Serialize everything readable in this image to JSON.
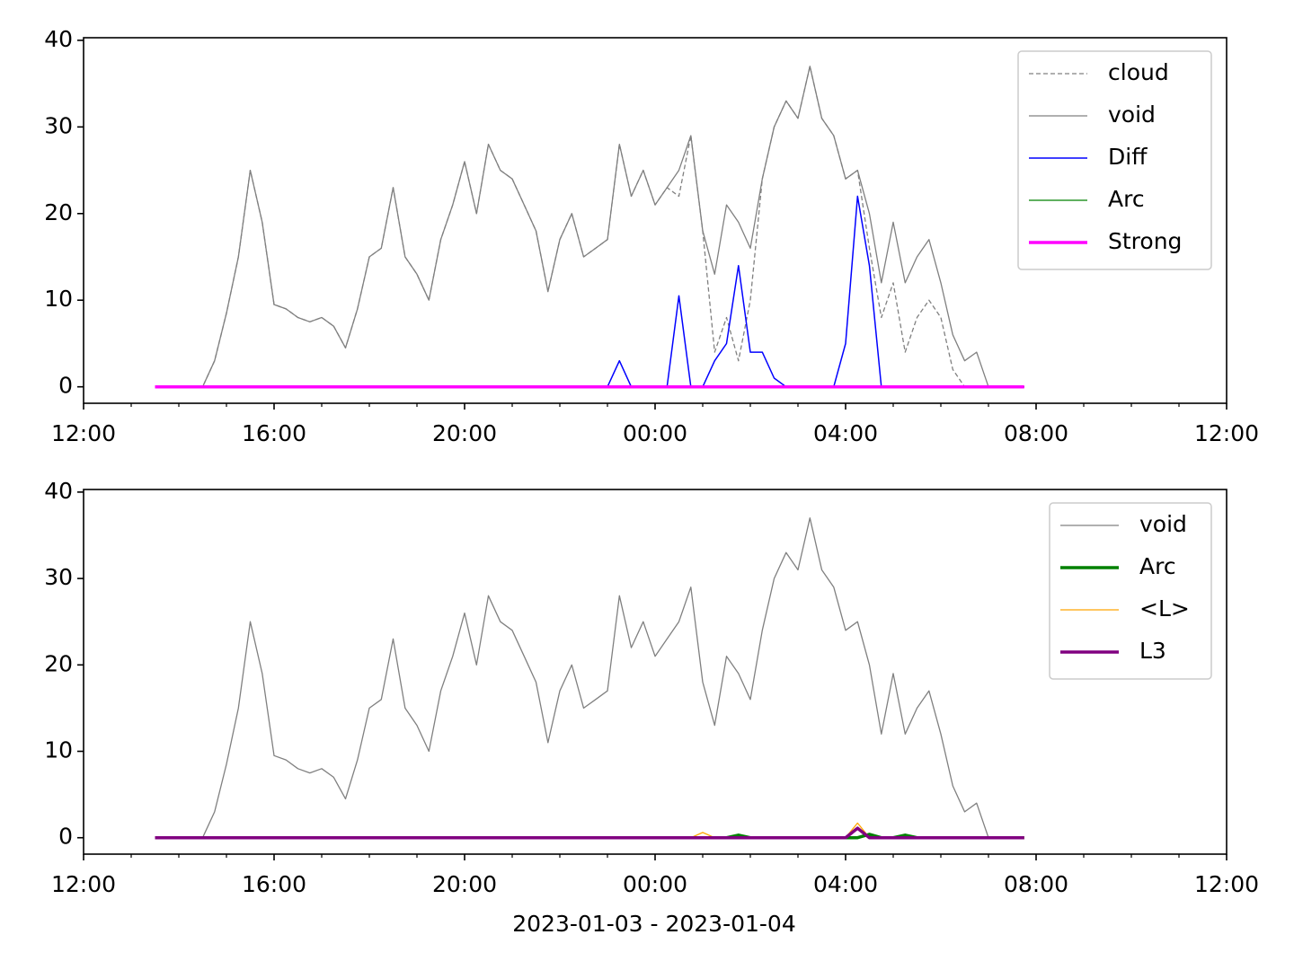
{
  "chart_data": [
    {
      "type": "line",
      "x": [
        13.5,
        13.75,
        14,
        14.25,
        14.5,
        14.75,
        15,
        15.25,
        15.5,
        15.75,
        16,
        16.25,
        16.5,
        16.75,
        17,
        17.25,
        17.5,
        17.75,
        18,
        18.25,
        18.5,
        18.75,
        19,
        19.25,
        19.5,
        19.75,
        20,
        20.25,
        20.5,
        20.75,
        21,
        21.25,
        21.5,
        21.75,
        22,
        22.25,
        22.5,
        22.75,
        23,
        23.25,
        23.5,
        23.75,
        24,
        24.25,
        24.5,
        24.75,
        25,
        25.25,
        25.5,
        25.75,
        26,
        26.25,
        26.5,
        26.75,
        27,
        27.25,
        27.5,
        27.75,
        28,
        28.25,
        28.5,
        28.75,
        29,
        29.25,
        29.5,
        29.75,
        30,
        30.25,
        30.5,
        30.75,
        31,
        31.25,
        31.5,
        31.75
      ],
      "xlim": [
        12,
        36
      ],
      "xticks": [
        {
          "value": 12,
          "label": "12:00"
        },
        {
          "value": 16,
          "label": "16:00"
        },
        {
          "value": 20,
          "label": "20:00"
        },
        {
          "value": 24,
          "label": "00:00"
        },
        {
          "value": 28,
          "label": "04:00"
        },
        {
          "value": 32,
          "label": "08:00"
        },
        {
          "value": 36,
          "label": "12:00"
        }
      ],
      "ylim": [
        -1.9,
        40.3
      ],
      "yticks": [
        0,
        10,
        20,
        30,
        40
      ],
      "legend": "upper right",
      "series": [
        {
          "name": "cloud",
          "color": "#808080",
          "dash": true,
          "width": 1.3,
          "values": [
            0,
            0,
            0,
            0,
            0,
            3,
            8.5,
            15,
            25,
            19,
            9.5,
            9,
            8,
            7.5,
            8,
            7,
            4.5,
            9,
            15,
            16,
            23,
            15,
            13,
            10,
            17,
            21,
            26,
            20,
            28,
            25,
            24,
            21,
            18,
            11,
            17,
            20,
            15,
            16,
            17,
            28,
            22,
            25,
            21,
            23,
            22,
            29,
            18,
            4,
            8,
            3,
            10,
            24,
            30,
            33,
            31,
            37,
            31,
            29,
            24,
            25,
            16,
            8,
            12,
            4,
            8,
            10,
            8,
            2,
            0,
            0,
            0,
            0,
            0,
            0
          ]
        },
        {
          "name": "void",
          "color": "#808080",
          "width": 1.3,
          "values": [
            0,
            0,
            0,
            0,
            0,
            3,
            8.5,
            15,
            25,
            19,
            9.5,
            9,
            8,
            7.5,
            8,
            7,
            4.5,
            9,
            15,
            16,
            23,
            15,
            13,
            10,
            17,
            21,
            26,
            20,
            28,
            25,
            24,
            21,
            18,
            11,
            17,
            20,
            15,
            16,
            17,
            28,
            22,
            25,
            21,
            23,
            25,
            29,
            18,
            13,
            21,
            19,
            16,
            24,
            30,
            33,
            31,
            37,
            31,
            29,
            24,
            25,
            20,
            12,
            19,
            12,
            15,
            17,
            12,
            6,
            3,
            4,
            0,
            0,
            0,
            0
          ]
        },
        {
          "name": "Diff",
          "color": "#0000ff",
          "width": 1.5,
          "values": [
            0,
            0,
            0,
            0,
            0,
            0,
            0,
            0,
            0,
            0,
            0,
            0,
            0,
            0,
            0,
            0,
            0,
            0,
            0,
            0,
            0,
            0,
            0,
            0,
            0,
            0,
            0,
            0,
            0,
            0,
            0,
            0,
            0,
            0,
            0,
            0,
            0,
            0,
            0,
            3,
            0,
            0,
            0,
            0,
            10.5,
            0,
            0,
            3,
            5,
            14,
            4,
            4,
            1,
            0,
            0,
            0,
            0,
            0,
            5,
            22,
            14,
            0,
            0,
            0,
            0,
            0,
            0,
            0,
            0,
            0,
            0,
            0,
            0,
            0
          ]
        },
        {
          "name": "Arc",
          "color": "#008000",
          "width": 1.3,
          "values": [
            0,
            0,
            0,
            0,
            0,
            0,
            0,
            0,
            0,
            0,
            0,
            0,
            0,
            0,
            0,
            0,
            0,
            0,
            0,
            0,
            0,
            0,
            0,
            0,
            0,
            0,
            0,
            0,
            0,
            0,
            0,
            0,
            0,
            0,
            0,
            0,
            0,
            0,
            0,
            0,
            0,
            0,
            0,
            0,
            0,
            0,
            0,
            0,
            0,
            0,
            0,
            0,
            0,
            0,
            0,
            0,
            0,
            0,
            0,
            0,
            0,
            0,
            0,
            0,
            0,
            0,
            0,
            0,
            0,
            0,
            0,
            0,
            0,
            0
          ]
        },
        {
          "name": "Strong",
          "color": "#ff00ff",
          "width": 3.5,
          "values": [
            0,
            0,
            0,
            0,
            0,
            0,
            0,
            0,
            0,
            0,
            0,
            0,
            0,
            0,
            0,
            0,
            0,
            0,
            0,
            0,
            0,
            0,
            0,
            0,
            0,
            0,
            0,
            0,
            0,
            0,
            0,
            0,
            0,
            0,
            0,
            0,
            0,
            0,
            0,
            0,
            0,
            0,
            0,
            0,
            0,
            0,
            0,
            0,
            0,
            0,
            0,
            0,
            0,
            0,
            0,
            0,
            0,
            0,
            0,
            0,
            0,
            0,
            0,
            0,
            0,
            0,
            0,
            0,
            0,
            0,
            0,
            0,
            0,
            0
          ]
        }
      ]
    },
    {
      "type": "line",
      "x": [
        13.5,
        13.75,
        14,
        14.25,
        14.5,
        14.75,
        15,
        15.25,
        15.5,
        15.75,
        16,
        16.25,
        16.5,
        16.75,
        17,
        17.25,
        17.5,
        17.75,
        18,
        18.25,
        18.5,
        18.75,
        19,
        19.25,
        19.5,
        19.75,
        20,
        20.25,
        20.5,
        20.75,
        21,
        21.25,
        21.5,
        21.75,
        22,
        22.25,
        22.5,
        22.75,
        23,
        23.25,
        23.5,
        23.75,
        24,
        24.25,
        24.5,
        24.75,
        25,
        25.25,
        25.5,
        25.75,
        26,
        26.25,
        26.5,
        26.75,
        27,
        27.25,
        27.5,
        27.75,
        28,
        28.25,
        28.5,
        28.75,
        29,
        29.25,
        29.5,
        29.75,
        30,
        30.25,
        30.5,
        30.75,
        31,
        31.25,
        31.5,
        31.75
      ],
      "xlim": [
        12,
        36
      ],
      "xticks": [
        {
          "value": 12,
          "label": "12:00"
        },
        {
          "value": 16,
          "label": "16:00"
        },
        {
          "value": 20,
          "label": "20:00"
        },
        {
          "value": 24,
          "label": "00:00"
        },
        {
          "value": 28,
          "label": "04:00"
        },
        {
          "value": 32,
          "label": "08:00"
        },
        {
          "value": 36,
          "label": "12:00"
        }
      ],
      "ylim": [
        -1.9,
        40.3
      ],
      "yticks": [
        0,
        10,
        20,
        30,
        40
      ],
      "xlabel": "2023-01-03 - 2023-01-04",
      "legend": "upper right",
      "series": [
        {
          "name": "void",
          "color": "#808080",
          "width": 1.3,
          "values": [
            0,
            0,
            0,
            0,
            0,
            3,
            8.5,
            15,
            25,
            19,
            9.5,
            9,
            8,
            7.5,
            8,
            7,
            4.5,
            9,
            15,
            16,
            23,
            15,
            13,
            10,
            17,
            21,
            26,
            20,
            28,
            25,
            24,
            21,
            18,
            11,
            17,
            20,
            15,
            16,
            17,
            28,
            22,
            25,
            21,
            23,
            25,
            29,
            18,
            13,
            21,
            19,
            16,
            24,
            30,
            33,
            31,
            37,
            31,
            29,
            24,
            25,
            20,
            12,
            19,
            12,
            15,
            17,
            12,
            6,
            3,
            4,
            0,
            0,
            0,
            0
          ]
        },
        {
          "name": "Arc",
          "color": "#008000",
          "width": 3.5,
          "values": [
            0,
            0,
            0,
            0,
            0,
            0,
            0,
            0,
            0,
            0,
            0,
            0,
            0,
            0,
            0,
            0,
            0,
            0,
            0,
            0,
            0,
            0,
            0,
            0,
            0,
            0,
            0,
            0,
            0,
            0,
            0,
            0,
            0,
            0,
            0,
            0,
            0,
            0,
            0,
            0,
            0,
            0,
            0,
            0,
            0,
            0,
            0,
            0,
            0,
            0.3,
            0,
            0,
            0,
            0,
            0,
            0,
            0,
            0,
            0,
            0,
            0.4,
            0,
            0,
            0.3,
            0,
            0,
            0,
            0,
            0,
            0,
            0,
            0,
            0,
            0
          ]
        },
        {
          "name": "<L>",
          "color": "#ffa500",
          "width": 1.3,
          "values": [
            0,
            0,
            0,
            0,
            0,
            0,
            0,
            0,
            0,
            0,
            0,
            0,
            0,
            0,
            0,
            0,
            0,
            0,
            0,
            0,
            0,
            0,
            0,
            0,
            0,
            0,
            0,
            0,
            0,
            0,
            0,
            0,
            0,
            0,
            0,
            0,
            0,
            0,
            0,
            0,
            0,
            0,
            0,
            0,
            0,
            0,
            0.6,
            0,
            0,
            0,
            0,
            0,
            0,
            0,
            0,
            0,
            0,
            0,
            0,
            1.7,
            0,
            0,
            0,
            0,
            0,
            0,
            0,
            0,
            0,
            0,
            0,
            0,
            0,
            0
          ]
        },
        {
          "name": "L3",
          "color": "#800080",
          "width": 3.5,
          "values": [
            0,
            0,
            0,
            0,
            0,
            0,
            0,
            0,
            0,
            0,
            0,
            0,
            0,
            0,
            0,
            0,
            0,
            0,
            0,
            0,
            0,
            0,
            0,
            0,
            0,
            0,
            0,
            0,
            0,
            0,
            0,
            0,
            0,
            0,
            0,
            0,
            0,
            0,
            0,
            0,
            0,
            0,
            0,
            0,
            0,
            0,
            0,
            0,
            0,
            0,
            0,
            0,
            0,
            0,
            0,
            0,
            0,
            0,
            0,
            1.1,
            0,
            0,
            0,
            0,
            0,
            0,
            0,
            0,
            0,
            0,
            0,
            0,
            0,
            0
          ]
        }
      ]
    }
  ]
}
